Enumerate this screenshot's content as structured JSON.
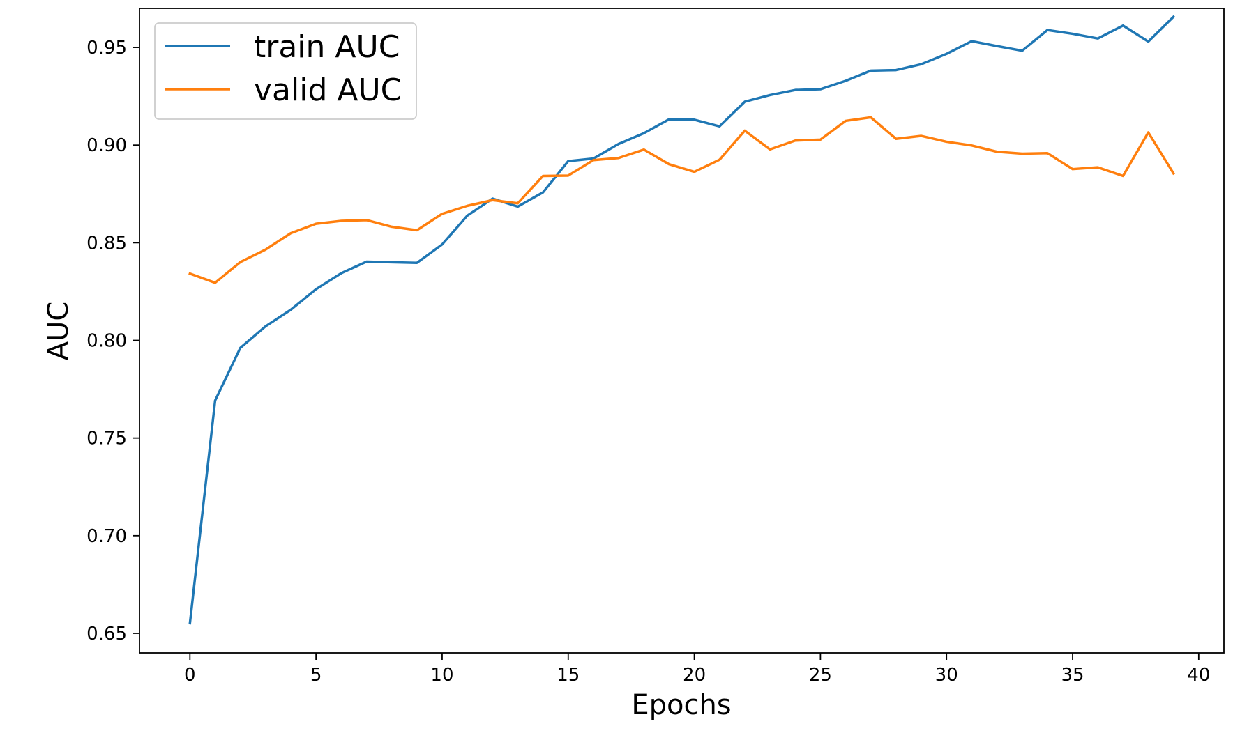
{
  "chart_data": {
    "type": "line",
    "title": "",
    "xlabel": "Epochs",
    "ylabel": "AUC",
    "xlim": [
      -2,
      41
    ],
    "ylim": [
      0.64,
      0.97
    ],
    "xticks": [
      0,
      5,
      10,
      15,
      20,
      25,
      30,
      35,
      40
    ],
    "xtick_labels": [
      "0",
      "5",
      "10",
      "15",
      "20",
      "25",
      "30",
      "35",
      "40"
    ],
    "yticks": [
      0.65,
      0.7,
      0.75,
      0.8,
      0.85,
      0.9,
      0.95
    ],
    "ytick_labels": [
      "0.65",
      "0.70",
      "0.75",
      "0.80",
      "0.85",
      "0.90",
      "0.95"
    ],
    "grid": false,
    "legend": "upper-left",
    "x": [
      0,
      1,
      2,
      3,
      4,
      5,
      6,
      7,
      8,
      9,
      10,
      11,
      12,
      13,
      14,
      15,
      16,
      17,
      18,
      19,
      20,
      21,
      22,
      23,
      24,
      25,
      26,
      27,
      28,
      29,
      30,
      31,
      32,
      33,
      34,
      35,
      36,
      37,
      38,
      39
    ],
    "series": [
      {
        "name": "train AUC",
        "color": "#1f77b4",
        "values": [
          0.6552,
          0.7692,
          0.7962,
          0.8072,
          0.8157,
          0.8262,
          0.8344,
          0.8403,
          0.84,
          0.8397,
          0.8491,
          0.8639,
          0.8726,
          0.8685,
          0.8758,
          0.8918,
          0.8931,
          0.9006,
          0.9061,
          0.9132,
          0.913,
          0.9096,
          0.9222,
          0.9256,
          0.9282,
          0.9286,
          0.9329,
          0.9381,
          0.9384,
          0.9414,
          0.9467,
          0.9532,
          0.9507,
          0.9483,
          0.9589,
          0.957,
          0.9546,
          0.9612,
          0.953,
          0.9657
        ]
      },
      {
        "name": "valid AUC",
        "color": "#ff7f0e",
        "values": [
          0.8342,
          0.8295,
          0.8401,
          0.8465,
          0.8549,
          0.8597,
          0.8612,
          0.8616,
          0.8582,
          0.8564,
          0.8648,
          0.8689,
          0.8718,
          0.8702,
          0.8842,
          0.8844,
          0.8923,
          0.8934,
          0.8977,
          0.8902,
          0.8863,
          0.8925,
          0.9074,
          0.8978,
          0.9023,
          0.9028,
          0.9124,
          0.9142,
          0.9032,
          0.9047,
          0.9017,
          0.8998,
          0.8966,
          0.8956,
          0.8959,
          0.8877,
          0.8886,
          0.8842,
          0.9065,
          0.8855
        ]
      }
    ]
  }
}
